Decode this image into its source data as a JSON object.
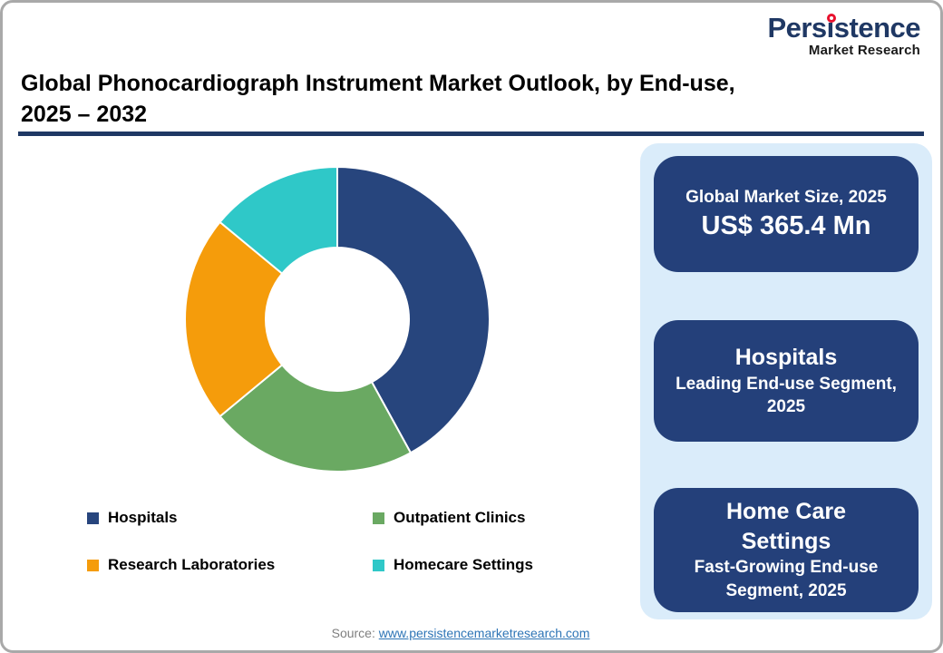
{
  "logo": {
    "brand": "Persistence",
    "sub": "Market Research",
    "brand_color": "#1f3864",
    "dot_color": "#e8112d"
  },
  "header": {
    "title_line1": "Global Phonocardiograph Instrument Market Outlook, by End-use,",
    "title_line2": "2025 – 2032",
    "rule_color": "#1f3864"
  },
  "chart_data": {
    "type": "pie",
    "subtype": "donut",
    "title": "Global Phonocardiograph Instrument Market Outlook, by End-use, 2025 – 2032",
    "labels": [
      "Hospitals",
      "Outpatient Clinics",
      "Research Laboratories",
      "Homecare Settings"
    ],
    "values": [
      42,
      22,
      22,
      14
    ],
    "unit": "percent-share-estimated",
    "colors": [
      "#27457d",
      "#6aa962",
      "#f59c0b",
      "#2fc8c8"
    ],
    "hole_ratio": 0.47,
    "start_angle_deg": 0,
    "direction": "clockwise",
    "segment_gap_color": "#ffffff",
    "legend_position": "bottom"
  },
  "sidebar": {
    "panel_bg": "#daecfa",
    "card_bg": "#24407a",
    "card1": {
      "kicker": "Global Market Size, 2025",
      "value": "US$ 365.4 Mn"
    },
    "card2": {
      "title": "Hospitals",
      "subtitle": "Leading End-use Segment, 2025"
    },
    "card3": {
      "title": "Home Care Settings",
      "subtitle": "Fast-Growing End-use Segment, 2025"
    }
  },
  "footer": {
    "source_label": "Source:",
    "source_link": "www.persistencemarketresearch.com"
  }
}
